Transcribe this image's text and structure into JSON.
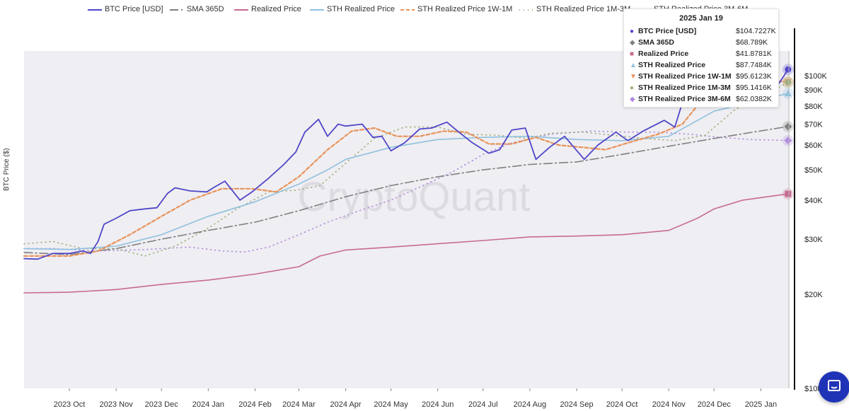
{
  "colors": {
    "btc": "#5046c8",
    "sma": "#808080",
    "realized": "#c76b92",
    "sth": "#8fc1df",
    "sth_1w1m": "#e8935a",
    "sth_1m3m": "#9fae7c",
    "sth_3m6m": "#b18ce0",
    "plot_bg": "#efeef2",
    "accent": "#1f33b6"
  },
  "legend": [
    {
      "key": "btc",
      "label": "BTC Price [USD]"
    },
    {
      "key": "sma",
      "label": "SMA 365D"
    },
    {
      "key": "realized",
      "label": "Realized Price"
    },
    {
      "key": "sth",
      "label": "STH Realized Price"
    },
    {
      "key": "sth_1w1m",
      "label": "STH Realized Price 1W-1M"
    },
    {
      "key": "sth_1m3m",
      "label": "STH Realized Price 1M-3M"
    },
    {
      "key": "sth_3m6m",
      "label": "STH Realized Price 3M-6M"
    }
  ],
  "watermark": "CryptoQuant",
  "tooltip": {
    "date": "2025 Jan 19",
    "rows": [
      {
        "key": "btc",
        "name": "BTC Price [USD]",
        "value": "$104.7227K"
      },
      {
        "key": "sma",
        "name": "SMA 365D",
        "value": "$68.789K"
      },
      {
        "key": "realized",
        "name": "Realized Price",
        "value": "$41.8781K"
      },
      {
        "key": "sth",
        "name": "STH Realized Price",
        "value": "$87.7484K"
      },
      {
        "key": "sth_1w1m",
        "name": "STH Realized Price 1W-1M",
        "value": "$95.6123K"
      },
      {
        "key": "sth_1m3m",
        "name": "STH Realized Price 1M-3M",
        "value": "$95.1416K"
      },
      {
        "key": "sth_3m6m",
        "name": "STH Realized Price 3M-6M",
        "value": "$62.0382K"
      }
    ]
  },
  "chart_data": {
    "type": "line",
    "ylabel": "BTC Price ($)",
    "yscale": "log",
    "ylim": [
      10000,
      120000
    ],
    "yticks": [
      {
        "value": 10000,
        "label": "$10K"
      },
      {
        "value": 20000,
        "label": "$20K"
      },
      {
        "value": 30000,
        "label": "$30K"
      },
      {
        "value": 40000,
        "label": "$40K"
      },
      {
        "value": 50000,
        "label": "$50K"
      },
      {
        "value": 60000,
        "label": "$60K"
      },
      {
        "value": 70000,
        "label": "$70K"
      },
      {
        "value": 80000,
        "label": "$80K"
      },
      {
        "value": 90000,
        "label": "$90K"
      },
      {
        "value": 100000,
        "label": "$100K"
      }
    ],
    "xrange": [
      "2023-09-01",
      "2025-01-20"
    ],
    "xticks": [
      {
        "date": "2023-10-01",
        "label": "2023 Oct"
      },
      {
        "date": "2023-11-01",
        "label": "2023 Nov"
      },
      {
        "date": "2023-12-01",
        "label": "2023 Dec"
      },
      {
        "date": "2024-01-01",
        "label": "2024 Jan"
      },
      {
        "date": "2024-02-01",
        "label": "2024 Feb"
      },
      {
        "date": "2024-03-01",
        "label": "2024 Mar"
      },
      {
        "date": "2024-04-01",
        "label": "2024 Apr"
      },
      {
        "date": "2024-05-01",
        "label": "2024 May"
      },
      {
        "date": "2024-06-01",
        "label": "2024 Jun"
      },
      {
        "date": "2024-07-01",
        "label": "2024 Jul"
      },
      {
        "date": "2024-08-01",
        "label": "2024 Aug"
      },
      {
        "date": "2024-09-01",
        "label": "2024 Sep"
      },
      {
        "date": "2024-10-01",
        "label": "2024 Oct"
      },
      {
        "date": "2024-11-01",
        "label": "2024 Nov"
      },
      {
        "date": "2024-12-01",
        "label": "2024 Dec"
      },
      {
        "date": "2025-01-01",
        "label": "2025 Jan"
      }
    ],
    "series": [
      {
        "key": "btc",
        "name": "BTC Price [USD]",
        "dash": "",
        "width": 1.8,
        "points": [
          [
            "2023-09-01",
            26000
          ],
          [
            "2023-09-10",
            25900
          ],
          [
            "2023-09-20",
            27000
          ],
          [
            "2023-10-01",
            27000
          ],
          [
            "2023-10-10",
            27500
          ],
          [
            "2023-10-15",
            27000
          ],
          [
            "2023-10-20",
            29500
          ],
          [
            "2023-10-24",
            33500
          ],
          [
            "2023-11-01",
            35000
          ],
          [
            "2023-11-10",
            37000
          ],
          [
            "2023-11-20",
            37500
          ],
          [
            "2023-11-28",
            37800
          ],
          [
            "2023-12-05",
            42000
          ],
          [
            "2023-12-10",
            43800
          ],
          [
            "2023-12-20",
            42800
          ],
          [
            "2023-12-31",
            42500
          ],
          [
            "2024-01-05",
            44000
          ],
          [
            "2024-01-12",
            46000
          ],
          [
            "2024-01-22",
            40000
          ],
          [
            "2024-01-30",
            42500
          ],
          [
            "2024-02-10",
            47000
          ],
          [
            "2024-02-20",
            52000
          ],
          [
            "2024-02-28",
            57000
          ],
          [
            "2024-03-05",
            66000
          ],
          [
            "2024-03-14",
            72500
          ],
          [
            "2024-03-20",
            64000
          ],
          [
            "2024-03-27",
            70000
          ],
          [
            "2024-04-01",
            69000
          ],
          [
            "2024-04-12",
            70000
          ],
          [
            "2024-04-19",
            63500
          ],
          [
            "2024-04-25",
            64000
          ],
          [
            "2024-05-01",
            57500
          ],
          [
            "2024-05-10",
            61000
          ],
          [
            "2024-05-20",
            67500
          ],
          [
            "2024-05-28",
            68000
          ],
          [
            "2024-06-07",
            71000
          ],
          [
            "2024-06-15",
            66000
          ],
          [
            "2024-06-24",
            61000
          ],
          [
            "2024-07-05",
            56500
          ],
          [
            "2024-07-12",
            58000
          ],
          [
            "2024-07-20",
            67000
          ],
          [
            "2024-07-29",
            68000
          ],
          [
            "2024-08-05",
            54000
          ],
          [
            "2024-08-14",
            59000
          ],
          [
            "2024-08-24",
            64000
          ],
          [
            "2024-09-06",
            54000
          ],
          [
            "2024-09-15",
            60000
          ],
          [
            "2024-09-27",
            66000
          ],
          [
            "2024-10-05",
            62000
          ],
          [
            "2024-10-15",
            66500
          ],
          [
            "2024-10-29",
            72000
          ],
          [
            "2024-11-05",
            68500
          ],
          [
            "2024-11-12",
            88000
          ],
          [
            "2024-11-22",
            98500
          ],
          [
            "2024-12-01",
            96000
          ],
          [
            "2024-12-08",
            100000
          ],
          [
            "2024-12-17",
            106000
          ],
          [
            "2024-12-25",
            97000
          ],
          [
            "2025-01-01",
            94500
          ],
          [
            "2025-01-07",
            97000
          ],
          [
            "2025-01-13",
            94500
          ],
          [
            "2025-01-19",
            104722.7
          ]
        ]
      },
      {
        "key": "sma",
        "name": "SMA 365D",
        "dash": "12,4,2,4",
        "width": 1.6,
        "points": [
          [
            "2023-09-01",
            27200
          ],
          [
            "2023-10-01",
            26800
          ],
          [
            "2023-11-01",
            28000
          ],
          [
            "2023-12-01",
            30000
          ],
          [
            "2024-01-01",
            32000
          ],
          [
            "2024-02-01",
            34000
          ],
          [
            "2024-03-01",
            37000
          ],
          [
            "2024-04-01",
            41000
          ],
          [
            "2024-05-01",
            44500
          ],
          [
            "2024-06-01",
            47500
          ],
          [
            "2024-07-01",
            50000
          ],
          [
            "2024-08-01",
            52000
          ],
          [
            "2024-09-01",
            53000
          ],
          [
            "2024-10-01",
            56000
          ],
          [
            "2024-11-01",
            59500
          ],
          [
            "2024-12-01",
            63000
          ],
          [
            "2025-01-19",
            68789
          ]
        ]
      },
      {
        "key": "realized",
        "name": "Realized Price",
        "dash": "",
        "width": 1.6,
        "points": [
          [
            "2023-09-01",
            20200
          ],
          [
            "2023-10-01",
            20300
          ],
          [
            "2023-11-01",
            20700
          ],
          [
            "2023-12-01",
            21500
          ],
          [
            "2024-01-01",
            22200
          ],
          [
            "2024-02-01",
            23200
          ],
          [
            "2024-03-01",
            24500
          ],
          [
            "2024-03-15",
            26500
          ],
          [
            "2024-04-01",
            27700
          ],
          [
            "2024-05-01",
            28300
          ],
          [
            "2024-06-01",
            29000
          ],
          [
            "2024-07-01",
            29700
          ],
          [
            "2024-08-01",
            30500
          ],
          [
            "2024-09-01",
            30700
          ],
          [
            "2024-10-01",
            31000
          ],
          [
            "2024-11-01",
            32000
          ],
          [
            "2024-11-20",
            35000
          ],
          [
            "2024-12-01",
            37500
          ],
          [
            "2024-12-20",
            40000
          ],
          [
            "2025-01-19",
            41878.1
          ]
        ]
      },
      {
        "key": "sth",
        "name": "STH Realized Price",
        "dash": "",
        "width": 1.6,
        "points": [
          [
            "2023-09-01",
            28000
          ],
          [
            "2023-10-01",
            27800
          ],
          [
            "2023-11-01",
            28500
          ],
          [
            "2023-12-01",
            31000
          ],
          [
            "2024-01-01",
            35500
          ],
          [
            "2024-02-01",
            39500
          ],
          [
            "2024-03-01",
            45000
          ],
          [
            "2024-03-20",
            50000
          ],
          [
            "2024-04-01",
            54000
          ],
          [
            "2024-05-01",
            59000
          ],
          [
            "2024-06-01",
            62500
          ],
          [
            "2024-07-01",
            63500
          ],
          [
            "2024-08-01",
            64000
          ],
          [
            "2024-09-01",
            62500
          ],
          [
            "2024-10-01",
            62000
          ],
          [
            "2024-11-01",
            64000
          ],
          [
            "2024-12-01",
            77000
          ],
          [
            "2025-01-19",
            87748.4
          ]
        ]
      },
      {
        "key": "sth_1w1m",
        "name": "STH Realized Price 1W-1M",
        "dash": "5,3",
        "width": 2.2,
        "points": [
          [
            "2023-09-01",
            26500
          ],
          [
            "2023-10-01",
            26500
          ],
          [
            "2023-10-20",
            27500
          ],
          [
            "2023-11-10",
            31000
          ],
          [
            "2023-12-01",
            35500
          ],
          [
            "2023-12-20",
            40000
          ],
          [
            "2024-01-10",
            43500
          ],
          [
            "2024-01-30",
            43500
          ],
          [
            "2024-02-15",
            42500
          ],
          [
            "2024-03-01",
            47500
          ],
          [
            "2024-03-20",
            58000
          ],
          [
            "2024-04-05",
            66500
          ],
          [
            "2024-04-20",
            68000
          ],
          [
            "2024-05-05",
            64000
          ],
          [
            "2024-05-20",
            64000
          ],
          [
            "2024-06-05",
            66500
          ],
          [
            "2024-06-20",
            66000
          ],
          [
            "2024-07-05",
            60500
          ],
          [
            "2024-07-20",
            60500
          ],
          [
            "2024-08-05",
            63500
          ],
          [
            "2024-08-20",
            60000
          ],
          [
            "2024-09-05",
            59000
          ],
          [
            "2024-09-20",
            58000
          ],
          [
            "2024-10-05",
            61000
          ],
          [
            "2024-10-25",
            65000
          ],
          [
            "2024-11-10",
            70000
          ],
          [
            "2024-11-25",
            86000
          ],
          [
            "2024-12-15",
            97000
          ],
          [
            "2025-01-19",
            95612.3
          ]
        ]
      },
      {
        "key": "sth_1m3m",
        "name": "STH Realized Price 1M-3M",
        "dash": "1,5",
        "width": 1.6,
        "points": [
          [
            "2023-09-01",
            29000
          ],
          [
            "2023-09-20",
            29500
          ],
          [
            "2023-10-10",
            28000
          ],
          [
            "2023-11-01",
            28000
          ],
          [
            "2023-11-20",
            26500
          ],
          [
            "2023-12-10",
            28500
          ],
          [
            "2024-01-01",
            32500
          ],
          [
            "2024-01-20",
            37500
          ],
          [
            "2024-02-10",
            42500
          ],
          [
            "2024-02-28",
            43000
          ],
          [
            "2024-03-15",
            44500
          ],
          [
            "2024-04-01",
            52500
          ],
          [
            "2024-04-20",
            63000
          ],
          [
            "2024-05-10",
            68500
          ],
          [
            "2024-06-01",
            68500
          ],
          [
            "2024-06-20",
            65000
          ],
          [
            "2024-07-10",
            64500
          ],
          [
            "2024-07-30",
            63000
          ],
          [
            "2024-08-15",
            65500
          ],
          [
            "2024-09-05",
            66000
          ],
          [
            "2024-09-25",
            64500
          ],
          [
            "2024-10-15",
            63000
          ],
          [
            "2024-11-05",
            62000
          ],
          [
            "2024-11-25",
            64500
          ],
          [
            "2024-12-15",
            78000
          ],
          [
            "2025-01-19",
            95141.6
          ]
        ]
      },
      {
        "key": "sth_3m6m",
        "name": "STH Realized Price 3M-6M",
        "dash": "1,5",
        "width": 1.6,
        "points": [
          [
            "2023-09-01",
            28000
          ],
          [
            "2023-09-20",
            28000
          ],
          [
            "2023-10-20",
            27500
          ],
          [
            "2023-11-20",
            27800
          ],
          [
            "2023-12-20",
            28300
          ],
          [
            "2024-01-10",
            27500
          ],
          [
            "2024-01-25",
            27300
          ],
          [
            "2024-02-10",
            28300
          ],
          [
            "2024-03-01",
            31000
          ],
          [
            "2024-03-20",
            34000
          ],
          [
            "2024-04-10",
            37000
          ],
          [
            "2024-05-01",
            40000
          ],
          [
            "2024-05-20",
            44000
          ],
          [
            "2024-06-10",
            49000
          ],
          [
            "2024-07-01",
            56000
          ],
          [
            "2024-07-20",
            61000
          ],
          [
            "2024-08-15",
            65000
          ],
          [
            "2024-09-10",
            66500
          ],
          [
            "2024-10-05",
            66000
          ],
          [
            "2024-10-25",
            66000
          ],
          [
            "2024-11-15",
            65000
          ],
          [
            "2024-12-05",
            63500
          ],
          [
            "2024-12-25",
            62500
          ],
          [
            "2025-01-19",
            62038.2
          ]
        ]
      }
    ]
  }
}
